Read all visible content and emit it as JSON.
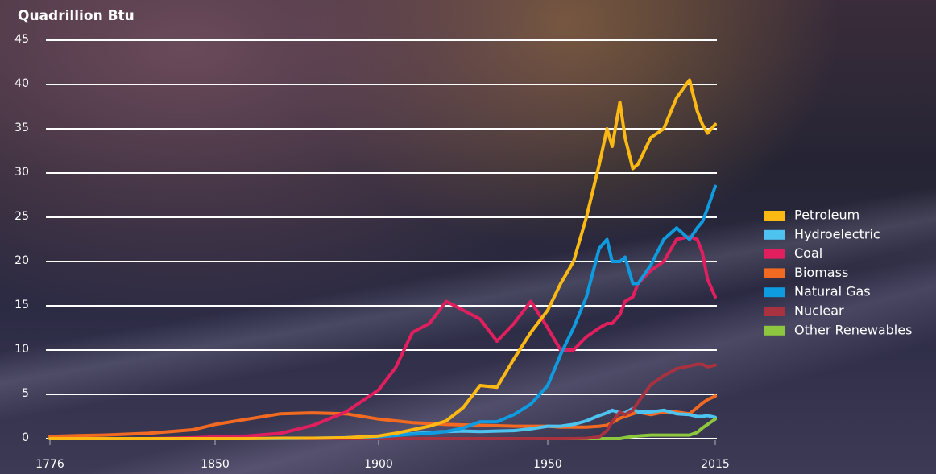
{
  "chart_data": {
    "type": "line",
    "y_label": "Quadrillion Btu",
    "x": [
      1776,
      1790,
      1800,
      1810,
      1820,
      1830,
      1840,
      1850,
      1860,
      1870,
      1880,
      1890,
      1900,
      1905,
      1910,
      1915,
      1920,
      1925,
      1930,
      1935,
      1940,
      1945,
      1950,
      1955,
      1960,
      1965,
      1970,
      1973,
      1975,
      1978,
      1980,
      1983,
      1985,
      1990,
      1995,
      2000,
      2005,
      2008,
      2010,
      2012,
      2015
    ],
    "xlim": [
      1776,
      2015
    ],
    "xticks": [
      1776,
      1850,
      1900,
      1950,
      2015
    ],
    "ylim": [
      0,
      45
    ],
    "yticks": [
      0,
      5,
      10,
      15,
      20,
      25,
      30,
      35,
      40,
      45
    ],
    "grid": true,
    "legend": "right",
    "series": [
      {
        "name": "Petroleum",
        "color": "#fdb913",
        "values": [
          0,
          0,
          0,
          0,
          0,
          0,
          0,
          0,
          0,
          0.05,
          0.05,
          0.1,
          0.3,
          0.6,
          1,
          1.4,
          2,
          3.5,
          6,
          5.8,
          9,
          12,
          14.5,
          17.5,
          20,
          25,
          31,
          35,
          33,
          38,
          34,
          30.5,
          31,
          34,
          35,
          38.5,
          40.5,
          37,
          35.5,
          34.5,
          35.5
        ]
      },
      {
        "name": "Hydroelectric",
        "color": "#4fc3f0",
        "values": [
          0,
          0,
          0,
          0,
          0,
          0,
          0,
          0,
          0,
          0,
          0,
          0.1,
          0.25,
          0.4,
          0.55,
          0.7,
          0.8,
          0.85,
          0.8,
          0.85,
          0.9,
          1.1,
          1.4,
          1.4,
          1.6,
          2.0,
          2.6,
          2.9,
          3.2,
          2.9,
          2.9,
          3.4,
          3.0,
          3.0,
          3.2,
          2.8,
          2.7,
          2.5,
          2.5,
          2.6,
          2.4
        ]
      },
      {
        "name": "Coal",
        "color": "#e21f5e",
        "values": [
          0,
          0,
          0,
          0,
          0,
          0.05,
          0.1,
          0.2,
          0.3,
          0.6,
          1.5,
          3,
          5.5,
          8,
          12,
          13,
          15.5,
          14.5,
          13.5,
          11,
          13,
          15.5,
          12.5,
          10,
          10,
          11.5,
          12.5,
          13,
          13,
          14,
          15.5,
          16,
          17.5,
          19,
          20,
          22.5,
          22.8,
          22.5,
          21,
          18,
          16
        ]
      },
      {
        "name": "Biomass",
        "color": "#f26a21",
        "values": [
          0.25,
          0.35,
          0.4,
          0.5,
          0.6,
          0.8,
          1.0,
          1.6,
          2.2,
          2.8,
          2.9,
          2.8,
          2.2,
          2.0,
          1.8,
          1.7,
          1.6,
          1.55,
          1.5,
          1.45,
          1.4,
          1.4,
          1.4,
          1.3,
          1.3,
          1.3,
          1.4,
          1.5,
          1.8,
          2.3,
          2.5,
          2.8,
          3.0,
          2.7,
          3.0,
          3.0,
          2.8,
          3.5,
          4.0,
          4.4,
          4.8
        ]
      },
      {
        "name": "Natural Gas",
        "color": "#0f9be0",
        "values": [
          0,
          0,
          0,
          0,
          0,
          0,
          0,
          0,
          0,
          0,
          0.05,
          0.1,
          0.2,
          0.35,
          0.5,
          0.6,
          0.8,
          1.2,
          1.9,
          1.9,
          2.7,
          3.9,
          6,
          9.5,
          12.5,
          16,
          21.5,
          22.5,
          20,
          20,
          20.5,
          17.5,
          17.5,
          19.6,
          22.5,
          23.8,
          22.5,
          23.8,
          24.5,
          26,
          28.5
        ]
      },
      {
        "name": "Nuclear",
        "color": "#a8323f",
        "values": [
          0,
          0,
          0,
          0,
          0,
          0,
          0,
          0,
          0,
          0,
          0,
          0,
          0,
          0,
          0,
          0,
          0,
          0,
          0,
          0,
          0,
          0,
          0,
          0,
          0.01,
          0.04,
          0.2,
          0.9,
          1.9,
          3,
          2.7,
          3.2,
          4.1,
          6.1,
          7.1,
          7.9,
          8.2,
          8.4,
          8.4,
          8.1,
          8.3
        ]
      },
      {
        "name": "Other Renewables",
        "color": "#8dc63f",
        "values": [
          0,
          0,
          0,
          0,
          0,
          0,
          0,
          0,
          0,
          0,
          0,
          0,
          0,
          0,
          0,
          0,
          0,
          0,
          0,
          0,
          0,
          0,
          0,
          0,
          0,
          0,
          0,
          0,
          0,
          0,
          0.1,
          0.25,
          0.3,
          0.4,
          0.4,
          0.4,
          0.4,
          0.7,
          1.2,
          1.6,
          2.2
        ]
      }
    ]
  }
}
